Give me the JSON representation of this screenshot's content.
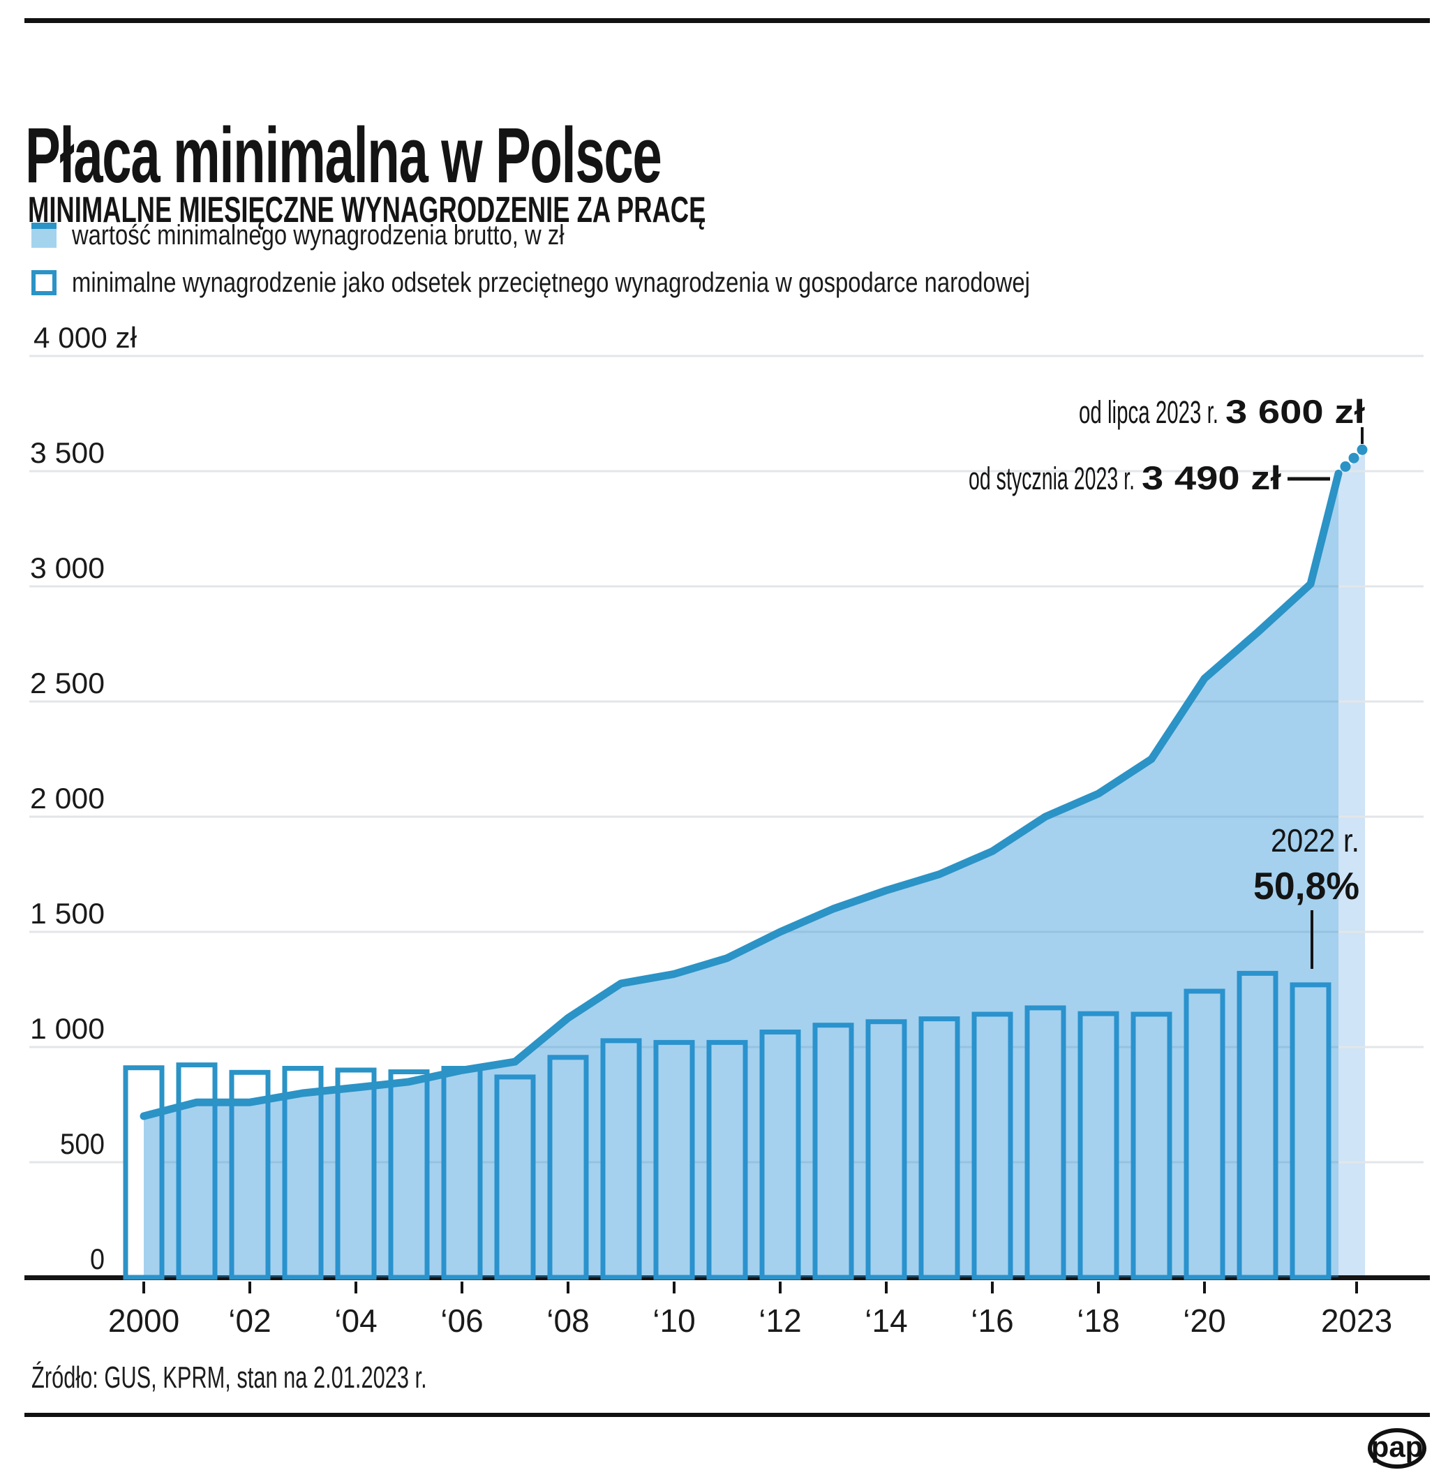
{
  "header": {
    "title": "Płaca minimalna w Polsce",
    "subtitle": "MINIMALNE MIESIĘCZNE WYNAGRODZENIE ZA PRACĘ"
  },
  "legend": {
    "items": [
      {
        "swatch": "filled-area-swatch",
        "label": "wartość minimalnego wynagrodzenia brutto, w zł"
      },
      {
        "swatch": "outlined-bar-swatch",
        "label": "minimalne wynagrodzenie jako odsetek przeciętnego wynagrodzenia w gospodarce narodowej"
      }
    ]
  },
  "colors": {
    "series": "#2b93c6",
    "area_fill": "rgba(40,145,215,0.42)",
    "projection_band": "#cfe4f6",
    "grid": "#e3e6e8",
    "ink": "#141414"
  },
  "chart_data": {
    "type": "combo-area-line-with-outlined-bars",
    "title": "Płaca minimalna w Polsce",
    "subtitle": "MINIMALNE MIESIĘCZNE WYNAGRODZENIE ZA PRACĘ",
    "xlabel": "",
    "ylabel": "zł",
    "grid": true,
    "years": [
      2000,
      2001,
      2002,
      2003,
      2004,
      2005,
      2006,
      2007,
      2008,
      2009,
      2010,
      2011,
      2012,
      2013,
      2014,
      2015,
      2016,
      2017,
      2018,
      2019,
      2020,
      2021,
      2022
    ],
    "series": [
      {
        "name": "wartość minimalnego wynagrodzenia brutto, w zł",
        "type": "area",
        "unit": "zł",
        "values": [
          700,
          760,
          760,
          800,
          824,
          849,
          899,
          936,
          1126,
          1276,
          1317,
          1386,
          1500,
          1600,
          1680,
          1750,
          1850,
          2000,
          2100,
          2250,
          2600,
          2800,
          3010
        ]
      },
      {
        "name": "minimalne wynagrodzenie jako odsetek przeciętnego wynagrodzenia w gospodarce narodowej",
        "type": "outlined-bar",
        "unit": "% przeciętnego wynagrodzenia",
        "percent_to_zl_scale": 25,
        "values": [
          36.4,
          36.9,
          35.6,
          36.3,
          36.0,
          35.7,
          36.3,
          34.8,
          38.2,
          41.1,
          40.8,
          40.8,
          42.6,
          43.8,
          44.4,
          44.9,
          45.7,
          46.8,
          45.8,
          45.7,
          49.7,
          52.8,
          50.8
        ]
      }
    ],
    "projection": {
      "points": [
        {
          "label": "od stycznia 2023 r.",
          "value": 3490,
          "style": "solid"
        },
        {
          "label": "od lipca 2023 r.",
          "value": 3600,
          "style": "dotted"
        }
      ]
    },
    "y_axis": {
      "min": 0,
      "max": 4000,
      "step": 500,
      "tick_labels": [
        "0",
        "500",
        "1 000",
        "1 500",
        "2 000",
        "2 500",
        "3 000",
        "3 500",
        "4 000 zł"
      ]
    },
    "x_axis": {
      "tick_years": [
        2000,
        2002,
        2004,
        2006,
        2008,
        2010,
        2012,
        2014,
        2016,
        2018,
        2020,
        2023
      ],
      "tick_labels": [
        "2000",
        "‘02",
        "‘04",
        "‘06",
        "‘08",
        "‘10",
        "‘12",
        "‘14",
        "‘16",
        "‘18",
        "‘20",
        "2023"
      ]
    },
    "annotations": [
      {
        "id": "jul-2023",
        "prefix": "od lipca 2023 r.",
        "bold": "3 600 zł"
      },
      {
        "id": "jan-2023",
        "prefix": "od stycznia 2023 r.",
        "bold": "3 490 zł"
      },
      {
        "id": "bar-2022",
        "line1": "2022 r.",
        "line2": "50,8%"
      }
    ]
  },
  "footer": {
    "source": "Źródło: GUS, KPRM, stan na 2.01.2023 r.",
    "logo_text": "pap"
  }
}
